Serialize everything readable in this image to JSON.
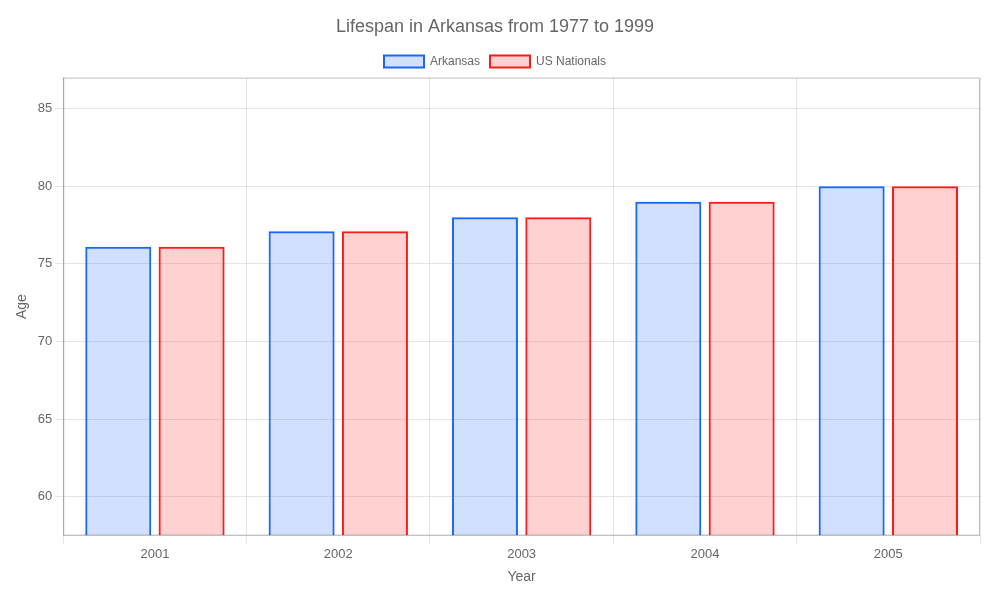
{
  "chart_data": {
    "type": "bar",
    "title": "Lifespan in Arkansas from 1977 to 1999",
    "xlabel": "Year",
    "ylabel": "Age",
    "categories": [
      "2001",
      "2002",
      "2003",
      "2004",
      "2005"
    ],
    "series": [
      {
        "name": "Arkansas",
        "color": "#1a66ff",
        "values": [
          76.1,
          77.1,
          78.0,
          79.0,
          80.0
        ]
      },
      {
        "name": "US Nationals",
        "color": "#ff1a1a",
        "values": [
          76.1,
          77.1,
          78.0,
          79.0,
          80.0
        ]
      }
    ],
    "ylim": [
      57.5,
      87
    ],
    "yticks": [
      60,
      65,
      70,
      75,
      80,
      85
    ],
    "grid": true,
    "legend": "top"
  }
}
